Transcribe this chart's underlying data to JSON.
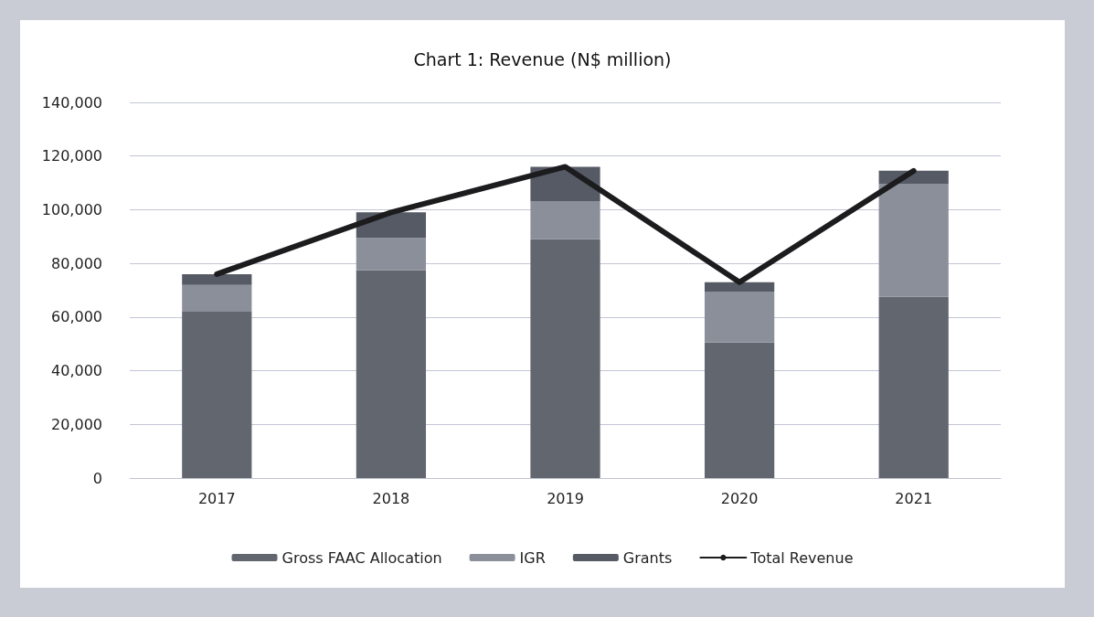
{
  "chart_data": {
    "type": "bar",
    "title": "Chart 1: Revenue (N$ million)",
    "categories": [
      "2017",
      "2018",
      "2019",
      "2020",
      "2021"
    ],
    "stacked": true,
    "series": [
      {
        "name": "Gross FAAC Allocation",
        "color": "#62666f",
        "values": [
          62000,
          77500,
          89000,
          50500,
          67500
        ]
      },
      {
        "name": "IGR",
        "color": "#8b8f99",
        "values": [
          10000,
          12000,
          14000,
          19000,
          42000
        ]
      },
      {
        "name": "Grants",
        "color": "#555a64",
        "values": [
          4000,
          9500,
          13000,
          3500,
          5000
        ]
      },
      {
        "name": "Total Revenue",
        "type": "line",
        "color": "#1c1c1e",
        "marker": "none",
        "values": [
          76000,
          99000,
          116000,
          73000,
          114500
        ]
      }
    ],
    "ylim": [
      0,
      140000
    ],
    "yticks": [
      0,
      {
        "value": 20000,
        "label": "20,000"
      },
      {
        "value": 40000,
        "label": "40,000"
      },
      {
        "value": 60000,
        "label": "60,000"
      },
      {
        "value": 80000,
        "label": "80,000"
      },
      {
        "value": 100000,
        "label": "100,000"
      },
      {
        "value": 120000,
        "label": "120,000"
      },
      {
        "value": 140000,
        "label": "140,000"
      }
    ],
    "grid": "y",
    "legend": "bottom"
  }
}
